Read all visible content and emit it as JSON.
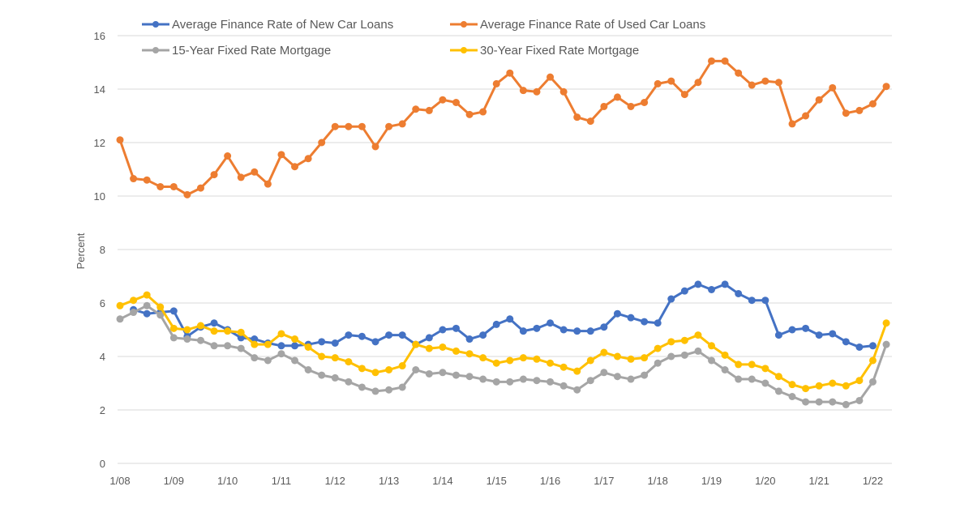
{
  "chart_data": {
    "type": "line",
    "title": "",
    "xlabel": "",
    "ylabel": "Percent",
    "ylim": [
      0,
      16
    ],
    "yticks": [
      0,
      2,
      4,
      6,
      8,
      10,
      12,
      14,
      16
    ],
    "grid": true,
    "legend_position": "top",
    "x_tick_labels": [
      "1/08",
      "1/09",
      "1/10",
      "1/11",
      "1/12",
      "1/13",
      "1/14",
      "1/15",
      "1/16",
      "1/17",
      "1/18",
      "1/19",
      "1/20",
      "1/21",
      "1/22"
    ],
    "x_frequency": "quarterly",
    "x_start": "Q1 2008",
    "series": [
      {
        "name": "Average Finance Rate of New Car Loans",
        "color": "#4472C4",
        "values": [
          null,
          5.75,
          5.6,
          5.65,
          5.7,
          4.75,
          5.1,
          5.25,
          5.0,
          4.7,
          4.65,
          4.5,
          4.4,
          4.4,
          4.45,
          4.55,
          4.5,
          4.8,
          4.75,
          4.55,
          4.8,
          4.8,
          4.45,
          4.7,
          5.0,
          5.05,
          4.65,
          4.8,
          5.2,
          5.4,
          4.95,
          5.05,
          5.25,
          5.0,
          4.95,
          4.95,
          5.1,
          5.6,
          5.45,
          5.3,
          5.25,
          6.15,
          6.45,
          6.7,
          6.5,
          6.7,
          6.35,
          6.1,
          6.1,
          4.8,
          5.0,
          5.05,
          4.8,
          4.85,
          4.55,
          4.35,
          4.4,
          null
        ]
      },
      {
        "name": "Average Finance Rate of Used Car Loans",
        "color": "#ED7D31",
        "values": [
          12.1,
          10.65,
          10.6,
          10.35,
          10.35,
          10.05,
          10.3,
          10.8,
          11.5,
          10.7,
          10.9,
          10.45,
          11.55,
          11.1,
          11.4,
          12.0,
          12.6,
          12.6,
          12.6,
          11.85,
          12.6,
          12.7,
          13.25,
          13.2,
          13.6,
          13.5,
          13.05,
          13.15,
          14.2,
          14.6,
          13.95,
          13.9,
          14.45,
          13.9,
          12.95,
          12.8,
          13.35,
          13.7,
          13.35,
          13.5,
          14.2,
          14.3,
          13.8,
          14.25,
          15.05,
          15.05,
          14.6,
          14.15,
          14.3,
          14.25,
          12.7,
          13.0,
          13.6,
          14.05,
          13.1,
          13.2,
          13.45,
          14.1
        ]
      },
      {
        "name": "15-Year Fixed Rate Mortgage",
        "color": "#A5A5A5",
        "values": [
          5.4,
          5.65,
          5.9,
          5.55,
          4.7,
          4.65,
          4.6,
          4.4,
          4.4,
          4.3,
          3.95,
          3.85,
          4.1,
          3.85,
          3.5,
          3.3,
          3.2,
          3.05,
          2.85,
          2.7,
          2.75,
          2.85,
          3.5,
          3.35,
          3.4,
          3.3,
          3.25,
          3.15,
          3.05,
          3.05,
          3.15,
          3.1,
          3.05,
          2.9,
          2.75,
          3.1,
          3.4,
          3.25,
          3.15,
          3.3,
          3.75,
          4.0,
          4.05,
          4.2,
          3.85,
          3.5,
          3.15,
          3.15,
          3.0,
          2.7,
          2.5,
          2.3,
          2.3,
          2.3,
          2.2,
          2.35,
          3.05,
          4.45
        ]
      },
      {
        "name": "30-Year Fixed Rate Mortgage",
        "color": "#FFC000",
        "values": [
          5.9,
          6.1,
          6.3,
          5.85,
          5.05,
          5.0,
          5.15,
          4.95,
          4.95,
          4.9,
          4.45,
          4.45,
          4.85,
          4.65,
          4.35,
          4.0,
          3.95,
          3.8,
          3.55,
          3.4,
          3.5,
          3.65,
          4.45,
          4.3,
          4.35,
          4.2,
          4.1,
          3.95,
          3.75,
          3.85,
          3.95,
          3.9,
          3.75,
          3.6,
          3.45,
          3.85,
          4.15,
          4.0,
          3.9,
          3.95,
          4.3,
          4.55,
          4.6,
          4.8,
          4.4,
          4.05,
          3.7,
          3.7,
          3.55,
          3.25,
          2.95,
          2.8,
          2.9,
          3.0,
          2.9,
          3.1,
          3.85,
          5.25
        ]
      }
    ]
  }
}
